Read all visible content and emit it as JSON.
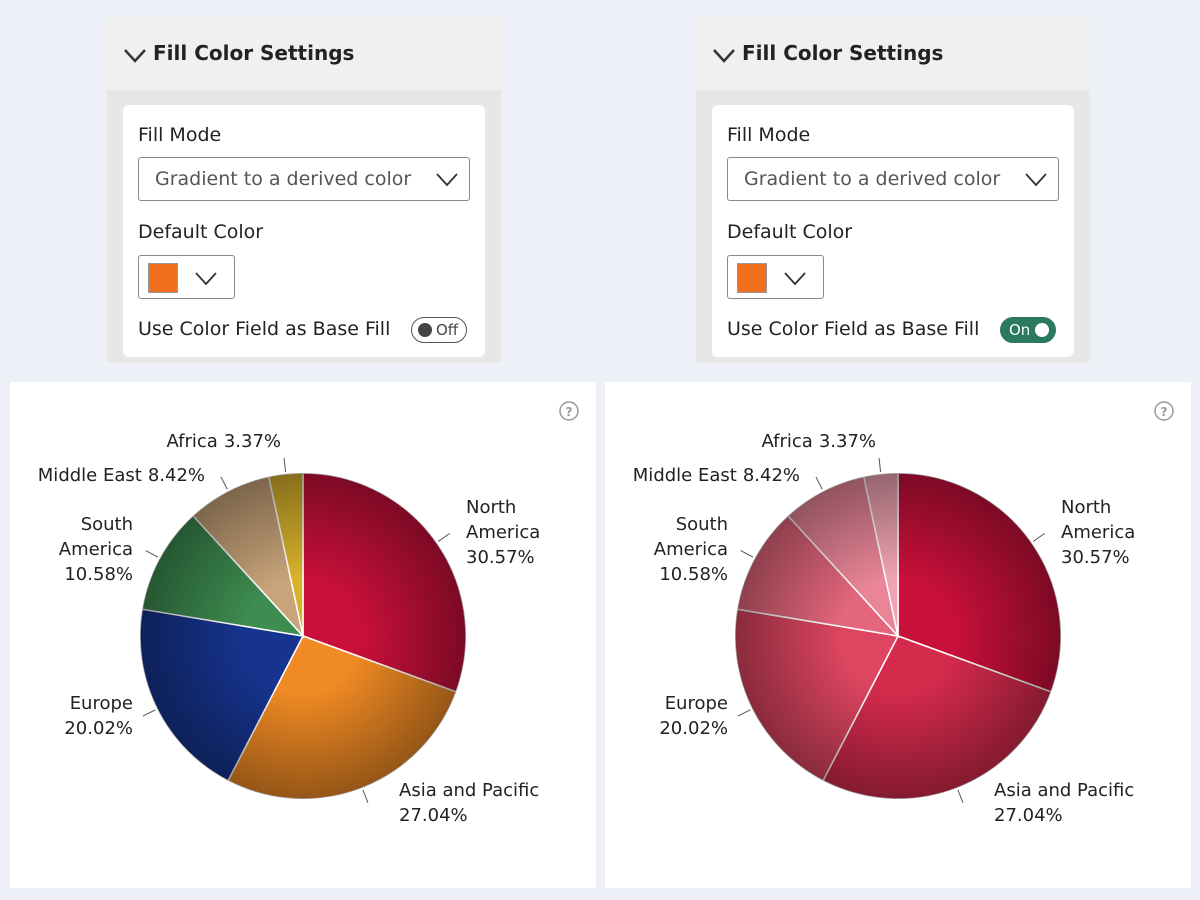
{
  "panels": [
    {
      "header": "Fill Color Settings",
      "fill_mode_label": "Fill Mode",
      "fill_mode_value": "Gradient to a derived color",
      "default_color_label": "Default Color",
      "default_color": "#f07020",
      "toggle_label": "Use Color Field as Base Fill",
      "toggle_state": "Off"
    },
    {
      "header": "Fill Color Settings",
      "fill_mode_label": "Fill Mode",
      "fill_mode_value": "Gradient to a derived color",
      "default_color_label": "Default Color",
      "default_color": "#f07020",
      "toggle_label": "Use Color Field as Base Fill",
      "toggle_state": "On"
    }
  ],
  "chart_data": [
    {
      "type": "pie",
      "help": "?",
      "categories": [
        "North America",
        "Asia and Pacific",
        "Europe",
        "South America",
        "Middle East",
        "Africa"
      ],
      "values": [
        30.57,
        27.04,
        20.02,
        10.58,
        8.42,
        3.37
      ],
      "value_labels": [
        "30.57%",
        "27.04%",
        "20.02%",
        "10.58%",
        "8.42%",
        "3.37%"
      ],
      "colors": [
        "#c8103a",
        "#f08a24",
        "#16348f",
        "#3d8c50",
        "#c9a47a",
        "#d9b22c"
      ]
    },
    {
      "type": "pie",
      "help": "?",
      "categories": [
        "North America",
        "Asia and Pacific",
        "Europe",
        "South America",
        "Middle East",
        "Africa"
      ],
      "values": [
        30.57,
        27.04,
        20.02,
        10.58,
        8.42,
        3.37
      ],
      "value_labels": [
        "30.57%",
        "27.04%",
        "20.02%",
        "10.58%",
        "8.42%",
        "3.37%"
      ],
      "colors": [
        "#c8103a",
        "#d42a4c",
        "#dd4560",
        "#e4667c",
        "#ea8598",
        "#f0a3b2"
      ]
    }
  ]
}
